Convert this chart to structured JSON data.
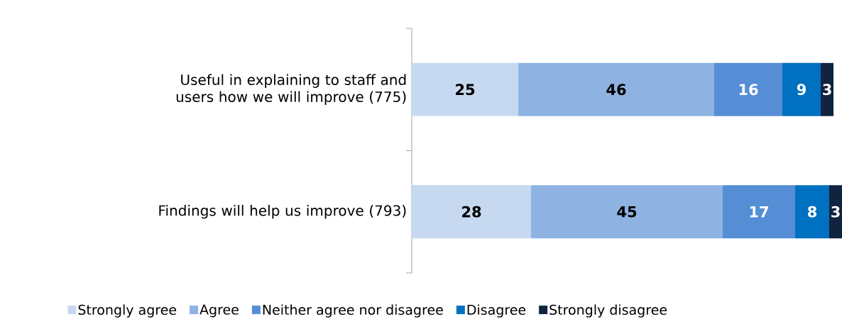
{
  "chart_data": {
    "type": "bar",
    "orientation": "horizontal",
    "stacked": true,
    "data_labels": true,
    "legend": "bottom",
    "categories": [
      "Useful in explaining to staff and users how we will improve (775)",
      "Findings will help us improve (793)"
    ],
    "series": [
      {
        "name": "Strongly agree",
        "color": "#c6d9f0",
        "values": [
          25,
          28
        ]
      },
      {
        "name": "Agree",
        "color": "#8eb3e2",
        "values": [
          46,
          45
        ]
      },
      {
        "name": "Neither agree nor disagree",
        "color": "#558ed5",
        "values": [
          16,
          17
        ]
      },
      {
        "name": "Disagree",
        "color": "#0070c0",
        "values": [
          9,
          8
        ]
      },
      {
        "name": "Strongly disagree",
        "color": "#10233f",
        "values": [
          3,
          3
        ]
      }
    ]
  }
}
